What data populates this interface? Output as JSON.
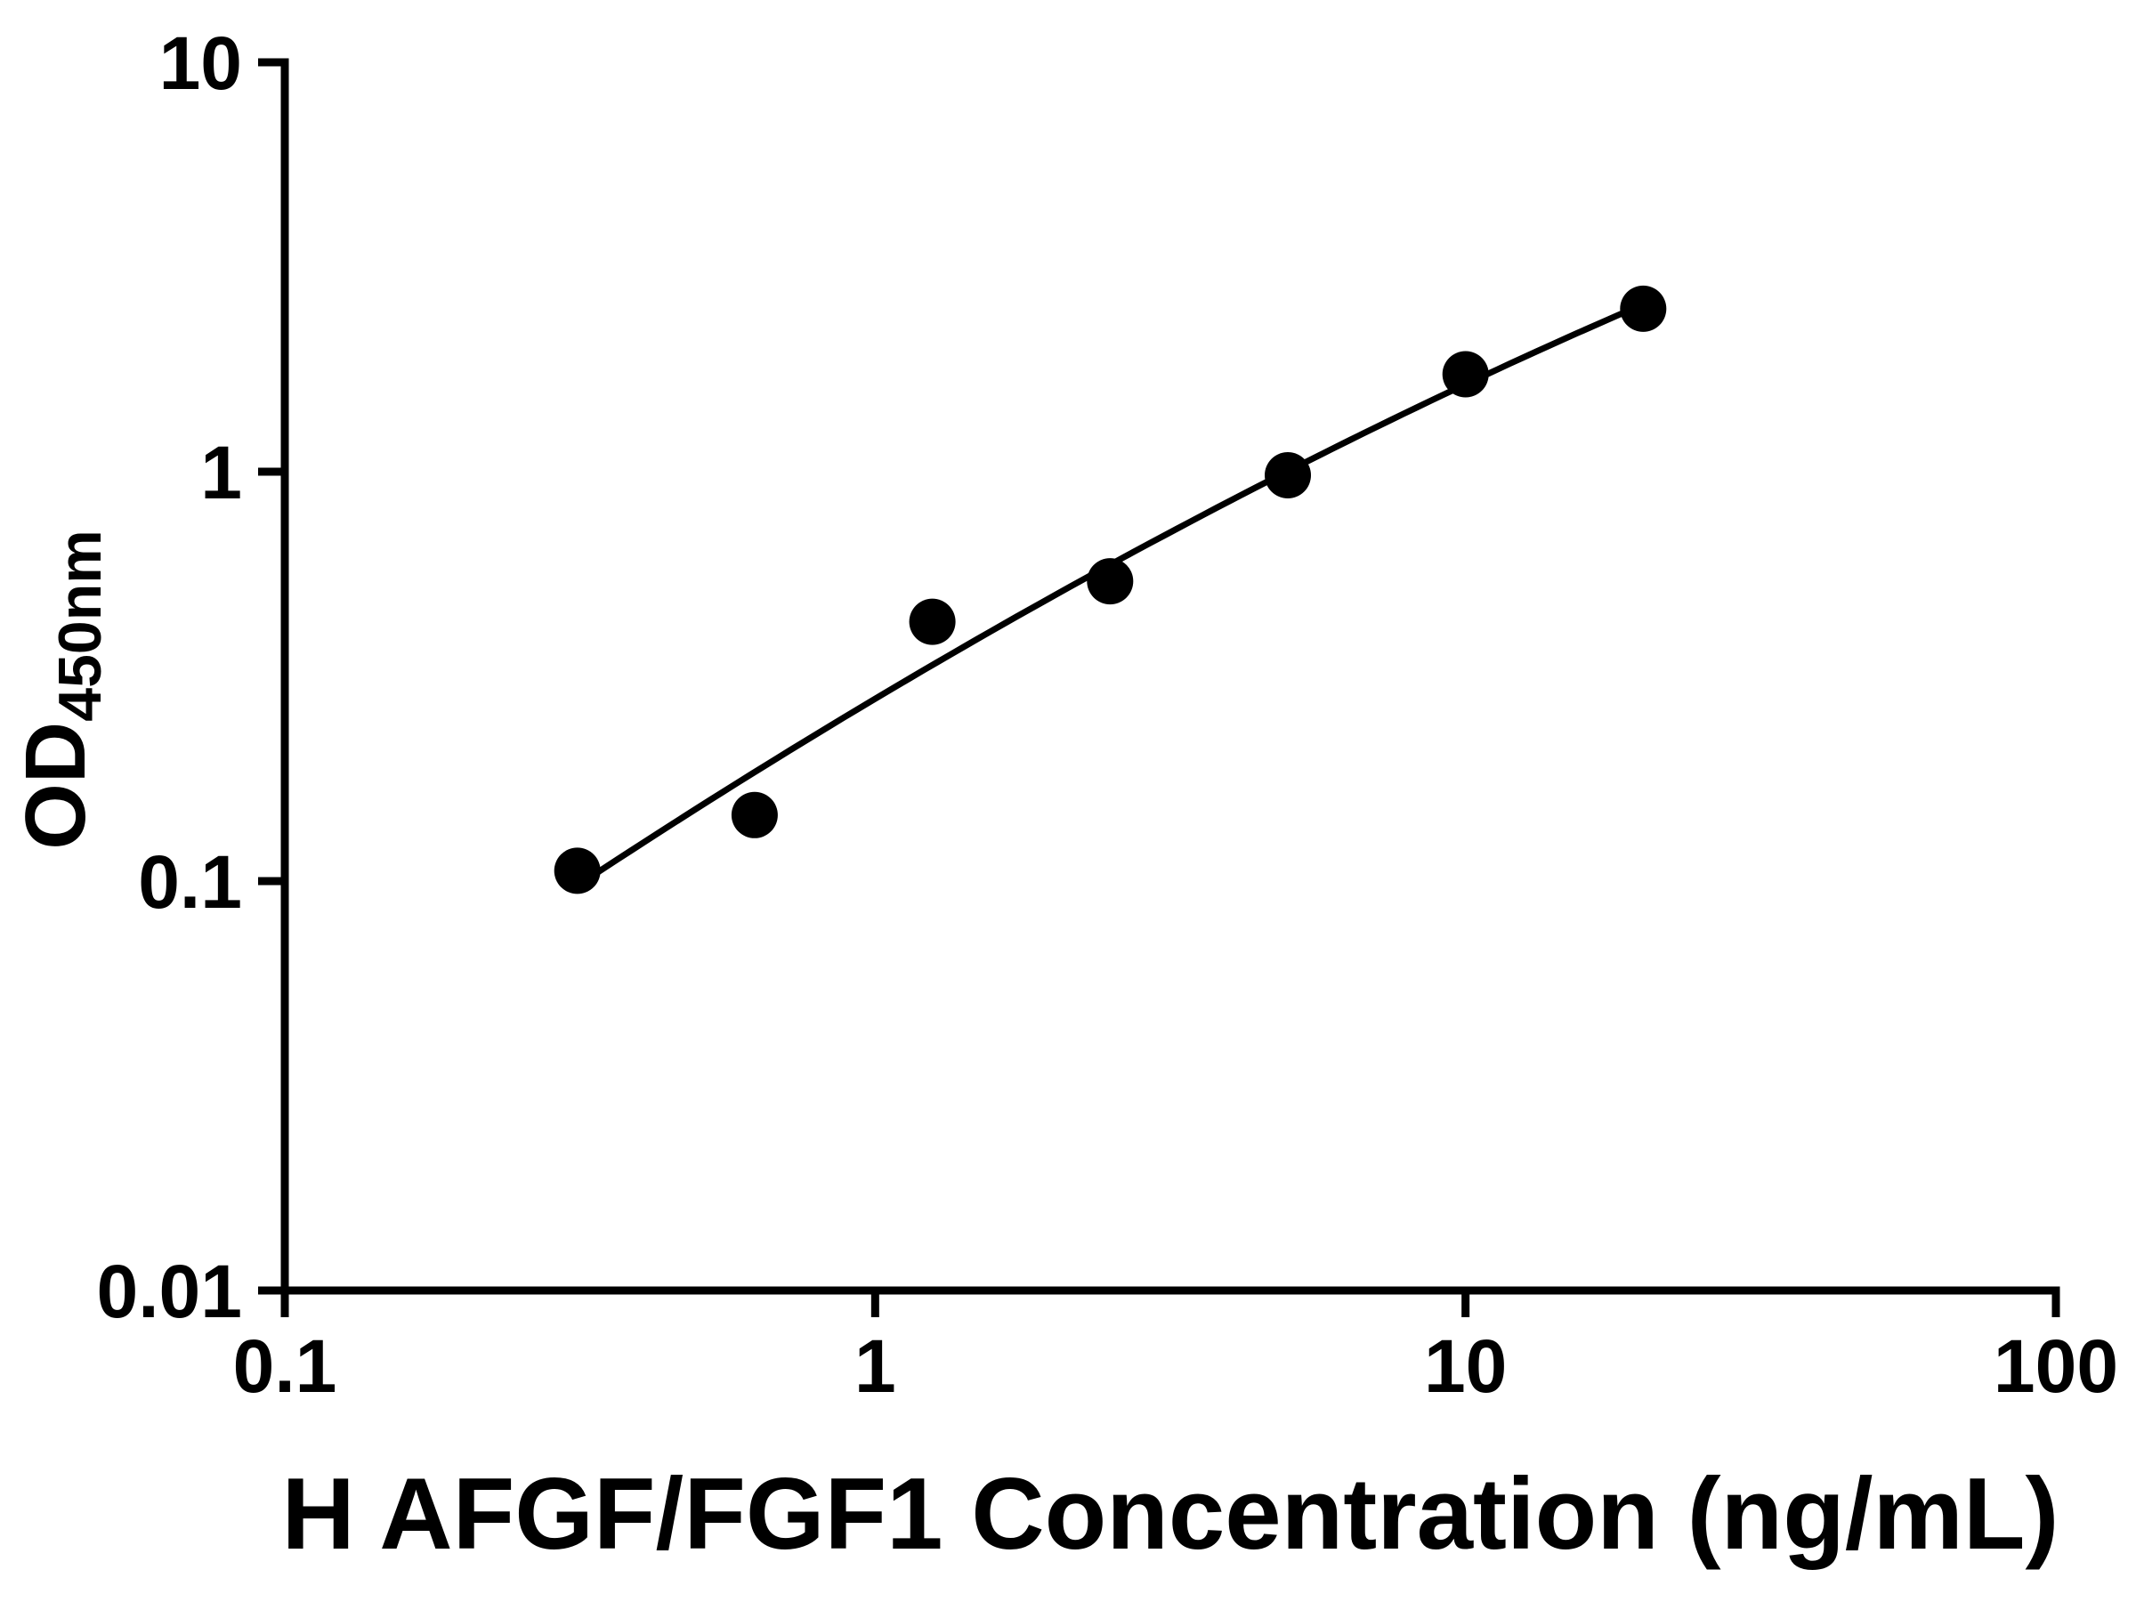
{
  "chart_data": {
    "type": "scatter",
    "title": "",
    "xlabel": "H AFGF/FGF1 Concentration (ng/mL)",
    "ylabel_main": "OD",
    "ylabel_sub": "450nm",
    "x_scale": "log",
    "y_scale": "log",
    "xlim": [
      0.1,
      100
    ],
    "ylim": [
      0.01,
      10
    ],
    "grid": false,
    "legend": "none",
    "axis_color": "#000000",
    "marker_color": "#000000",
    "line_color": "#000000",
    "background_color": "#ffffff",
    "x_ticks": [
      {
        "value": 0.1,
        "label": "0.1"
      },
      {
        "value": 1,
        "label": "1"
      },
      {
        "value": 10,
        "label": "10"
      },
      {
        "value": 100,
        "label": "100"
      }
    ],
    "y_ticks": [
      {
        "value": 0.01,
        "label": "0.01"
      },
      {
        "value": 0.1,
        "label": "0.1"
      },
      {
        "value": 1,
        "label": "1"
      },
      {
        "value": 10,
        "label": "10"
      }
    ],
    "points": [
      {
        "x": 0.313,
        "y": 0.106
      },
      {
        "x": 0.625,
        "y": 0.145
      },
      {
        "x": 1.25,
        "y": 0.43
      },
      {
        "x": 2.5,
        "y": 0.54
      },
      {
        "x": 5,
        "y": 0.98
      },
      {
        "x": 10,
        "y": 1.73
      },
      {
        "x": 20,
        "y": 2.5
      }
    ],
    "curve_fit": "smooth-loglog-quadratic-through-points"
  }
}
